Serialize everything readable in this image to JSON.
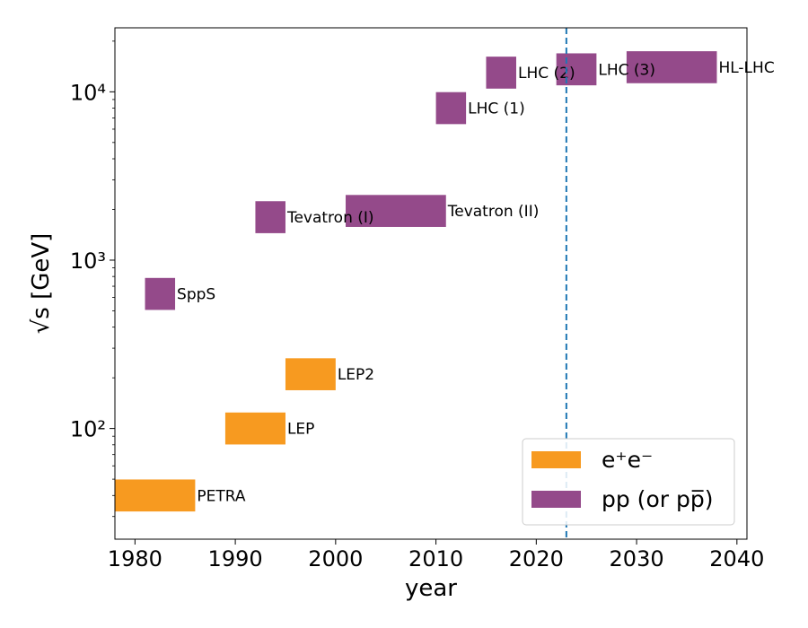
{
  "chart_data": {
    "type": "bar",
    "xlabel": "year",
    "ylabel": "√s [GeV]",
    "x_scale": "linear",
    "y_scale": "log",
    "xlim": [
      1978,
      2041
    ],
    "ylim": [
      22,
      24000
    ],
    "x_ticks": [
      1980,
      1990,
      2000,
      2010,
      2020,
      2030,
      2040
    ],
    "y_ticks": [
      100,
      1000,
      10000
    ],
    "y_tick_labels": [
      "10²",
      "10³",
      "10⁴"
    ],
    "vline": {
      "x": 2023,
      "style": "dashed",
      "color": "#1f77b4"
    },
    "legend": {
      "position": "bottom-right",
      "entries": [
        {
          "key": "ee",
          "label": "e⁺e⁻",
          "color": "#f79a20"
        },
        {
          "key": "pp",
          "label": "pp (or pp̅)",
          "color": "#944a8a"
        }
      ]
    },
    "bars": [
      {
        "label": "PETRA",
        "group": "ee",
        "start": 1978,
        "end": 1986,
        "energy": 40
      },
      {
        "label": "LEP",
        "group": "ee",
        "start": 1989,
        "end": 1995,
        "energy": 100
      },
      {
        "label": "LEP2",
        "group": "ee",
        "start": 1995,
        "end": 2000,
        "energy": 210
      },
      {
        "label": "SppS",
        "group": "pp",
        "start": 1981,
        "end": 1984,
        "energy": 630
      },
      {
        "label": "Tevatron (I)",
        "group": "pp",
        "start": 1992,
        "end": 1995,
        "energy": 1800
      },
      {
        "label": "Tevatron (II)",
        "group": "pp",
        "start": 2001,
        "end": 2011,
        "energy": 1960
      },
      {
        "label": "LHC (1)",
        "group": "pp",
        "start": 2010,
        "end": 2013,
        "energy": 8000
      },
      {
        "label": "LHC (2)",
        "group": "pp",
        "start": 2015,
        "end": 2018,
        "energy": 13000
      },
      {
        "label": "LHC (3)",
        "group": "pp",
        "start": 2022,
        "end": 2026,
        "energy": 13600
      },
      {
        "label": "HL-LHC",
        "group": "pp",
        "start": 2029,
        "end": 2038,
        "energy": 14000
      }
    ]
  }
}
